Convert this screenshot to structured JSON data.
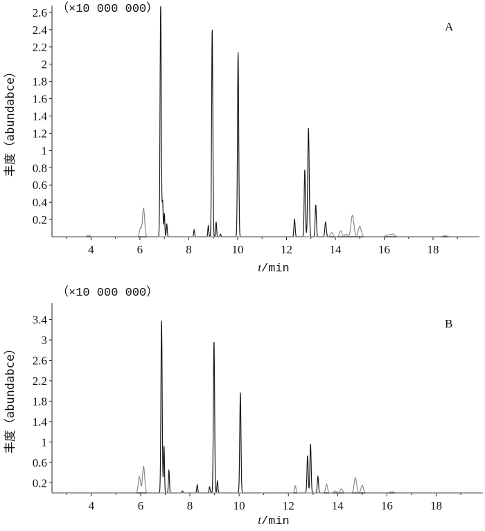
{
  "chart_data": [
    {
      "panel": "A",
      "type": "line",
      "scale_note": "（×10 000 000）",
      "ylabel": "丰度（abundabce）",
      "xlabel_italic": "t",
      "xlabel_rest": "/min",
      "xlim": [
        2.4,
        19.9
      ],
      "ylim": [
        0,
        2.68
      ],
      "xticks": [
        4,
        6,
        8,
        10,
        12,
        14,
        16,
        18
      ],
      "yticks": [
        0.2,
        0.4,
        0.6,
        0.8,
        1,
        1.2,
        1.4,
        1.6,
        1.8,
        2,
        2.2,
        2.4,
        2.6
      ],
      "ytick_labels": [
        "0.2",
        "0.4",
        "0.6",
        "0.8",
        "1",
        "1.2",
        "1.4",
        "1.6",
        "1.8",
        "2",
        "2.2",
        "2.4",
        "2.6"
      ],
      "grid": false,
      "series": [
        {
          "color": "#1a1a1a",
          "peaks": [
            {
              "rt": 6.85,
              "h": 2.68,
              "w": 0.025
            },
            {
              "rt": 6.93,
              "h": 0.41,
              "w": 0.02
            },
            {
              "rt": 7.0,
              "h": 0.27,
              "w": 0.02
            },
            {
              "rt": 7.1,
              "h": 0.15,
              "w": 0.02
            },
            {
              "rt": 8.22,
              "h": 0.08,
              "w": 0.02
            },
            {
              "rt": 8.8,
              "h": 0.13,
              "w": 0.02
            },
            {
              "rt": 8.96,
              "h": 2.41,
              "w": 0.025
            },
            {
              "rt": 9.12,
              "h": 0.17,
              "w": 0.02
            },
            {
              "rt": 9.3,
              "h": 0.03,
              "w": 0.02
            },
            {
              "rt": 10.02,
              "h": 2.14,
              "w": 0.025
            },
            {
              "rt": 12.33,
              "h": 0.2,
              "w": 0.025
            },
            {
              "rt": 12.75,
              "h": 0.78,
              "w": 0.025
            },
            {
              "rt": 12.9,
              "h": 1.26,
              "w": 0.03
            },
            {
              "rt": 13.2,
              "h": 0.37,
              "w": 0.025
            },
            {
              "rt": 13.6,
              "h": 0.17,
              "w": 0.03
            }
          ]
        },
        {
          "color": "#8a8a8a",
          "peaks": [
            {
              "rt": 3.9,
              "h": 0.02,
              "w": 0.05
            },
            {
              "rt": 6.02,
              "h": 0.1,
              "w": 0.04
            },
            {
              "rt": 6.15,
              "h": 0.33,
              "w": 0.045
            },
            {
              "rt": 13.85,
              "h": 0.05,
              "w": 0.05
            },
            {
              "rt": 14.22,
              "h": 0.07,
              "w": 0.05
            },
            {
              "rt": 14.45,
              "h": 0.03,
              "w": 0.05
            },
            {
              "rt": 14.7,
              "h": 0.25,
              "w": 0.06
            },
            {
              "rt": 15.0,
              "h": 0.12,
              "w": 0.06
            },
            {
              "rt": 16.15,
              "h": 0.02,
              "w": 0.08
            },
            {
              "rt": 16.35,
              "h": 0.03,
              "w": 0.08
            },
            {
              "rt": 18.5,
              "h": 0.01,
              "w": 0.1
            }
          ]
        }
      ]
    },
    {
      "panel": "B",
      "type": "line",
      "scale_note": "（×10 000 000）",
      "ylabel": "丰度（abundabce）",
      "xlabel_italic": "t",
      "xlabel_rest": "/min",
      "xlim": [
        2.4,
        19.9
      ],
      "ylim": [
        0,
        3.72
      ],
      "xticks": [
        4,
        6,
        8,
        10,
        12,
        14,
        16,
        18
      ],
      "yticks": [
        0.2,
        0.6,
        1,
        1.4,
        1.8,
        2.2,
        2.6,
        3,
        3.4
      ],
      "ytick_labels": [
        "0.2",
        "0.6",
        "1",
        "1.4",
        "1.8",
        "2.2",
        "2.6",
        "3",
        "3.4"
      ],
      "grid": false,
      "series": [
        {
          "color": "#1a1a1a",
          "peaks": [
            {
              "rt": 6.85,
              "h": 3.39,
              "w": 0.025
            },
            {
              "rt": 6.95,
              "h": 0.92,
              "w": 0.02
            },
            {
              "rt": 7.15,
              "h": 0.45,
              "w": 0.02
            },
            {
              "rt": 7.7,
              "h": 0.04,
              "w": 0.02
            },
            {
              "rt": 8.3,
              "h": 0.16,
              "w": 0.02
            },
            {
              "rt": 8.8,
              "h": 0.12,
              "w": 0.02
            },
            {
              "rt": 8.98,
              "h": 2.98,
              "w": 0.025
            },
            {
              "rt": 9.12,
              "h": 0.24,
              "w": 0.02
            },
            {
              "rt": 10.05,
              "h": 1.97,
              "w": 0.025
            },
            {
              "rt": 12.78,
              "h": 0.73,
              "w": 0.025
            },
            {
              "rt": 12.9,
              "h": 0.96,
              "w": 0.025
            },
            {
              "rt": 13.2,
              "h": 0.32,
              "w": 0.025
            }
          ]
        },
        {
          "color": "#8a8a8a",
          "peaks": [
            {
              "rt": 5.95,
              "h": 0.32,
              "w": 0.045
            },
            {
              "rt": 6.12,
              "h": 0.52,
              "w": 0.045
            },
            {
              "rt": 12.28,
              "h": 0.14,
              "w": 0.03
            },
            {
              "rt": 13.55,
              "h": 0.17,
              "w": 0.04
            },
            {
              "rt": 13.9,
              "h": 0.04,
              "w": 0.05
            },
            {
              "rt": 14.15,
              "h": 0.08,
              "w": 0.05
            },
            {
              "rt": 14.72,
              "h": 0.3,
              "w": 0.05
            },
            {
              "rt": 15.0,
              "h": 0.15,
              "w": 0.05
            },
            {
              "rt": 16.2,
              "h": 0.02,
              "w": 0.08
            }
          ]
        }
      ]
    }
  ]
}
